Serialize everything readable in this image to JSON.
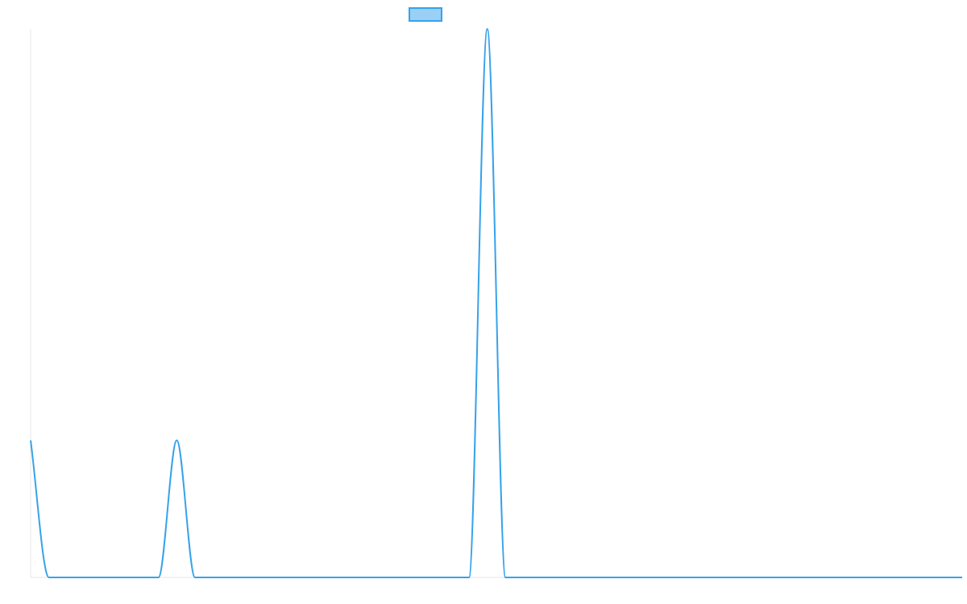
{
  "chart_data": {
    "type": "line",
    "title": "",
    "xlabel": "",
    "ylabel": "",
    "x": [
      0,
      1,
      2,
      3,
      4,
      5,
      6,
      7,
      8,
      9,
      10,
      11,
      12,
      13,
      14,
      15,
      16,
      17,
      18,
      19,
      20,
      21,
      22,
      23,
      24,
      25,
      26,
      27,
      28,
      29,
      30,
      31,
      32,
      33,
      34,
      35,
      36,
      37,
      38,
      39,
      40,
      41,
      42,
      43,
      44,
      45,
      46,
      47,
      48,
      49,
      50,
      51
    ],
    "series": [
      {
        "name": "",
        "values": [
          1,
          0,
          0,
          0,
          0,
          0,
          0,
          0,
          1,
          0,
          0,
          0,
          0,
          0,
          0,
          0,
          0,
          0,
          0,
          0,
          0,
          0,
          0,
          0,
          0,
          4,
          0,
          0,
          0,
          0,
          0,
          0,
          0,
          0,
          0,
          0,
          0,
          0,
          0,
          0,
          0,
          0,
          0,
          0,
          0,
          0,
          0,
          0,
          0,
          0,
          0,
          0
        ],
        "color": "#36a2eb",
        "fill": "#9ad0f5"
      }
    ],
    "ylim": [
      0,
      4
    ],
    "xlim": [
      0,
      51
    ],
    "grid": false,
    "show_tick_labels": false,
    "legend": "top-center"
  }
}
